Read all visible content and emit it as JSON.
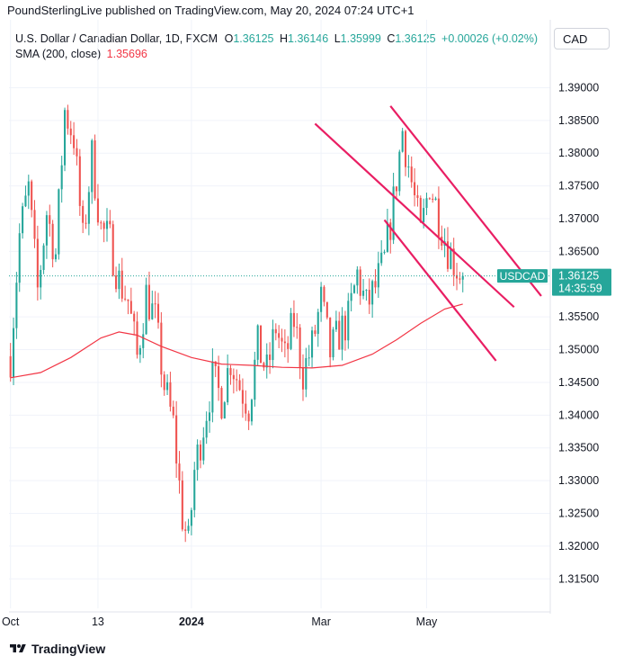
{
  "header": {
    "publisher_line": "PoundSterlingLive published on TradingView.com, May 20, 2024 07:24 UTC+1"
  },
  "legend": {
    "symbol_title": "U.S. Dollar / Canadian Dollar, 1D, FXCM",
    "o_label": "O",
    "o_value": "1.36125",
    "h_label": "H",
    "h_value": "1.36146",
    "l_label": "L",
    "l_value": "1.35999",
    "c_label": "C",
    "c_value": "1.36125",
    "change": "+0.00026 (+0.02%)",
    "sma_label": "SMA (200, close)",
    "sma_value": "1.35696"
  },
  "currency_button": "CAD",
  "footer": {
    "brand": "TradingView"
  },
  "colors": {
    "up": "#26a69a",
    "down": "#ef5350",
    "sma": "#f23645",
    "trendline": "#e91e63",
    "grid": "#f0f3fa"
  },
  "chart_data": {
    "type": "candlestick",
    "y_range": [
      1.3105,
      1.3935
    ],
    "y_ticks": [
      "1.39000",
      "1.38500",
      "1.38000",
      "1.37500",
      "1.37000",
      "1.36500",
      "1.36000",
      "1.35500",
      "1.35000",
      "1.34500",
      "1.34000",
      "1.33500",
      "1.33000",
      "1.32500",
      "1.32000",
      "1.31500"
    ],
    "x_ticks": [
      {
        "label": "Oct",
        "index": 0,
        "bold": false
      },
      {
        "label": "13",
        "index": 29,
        "bold": false
      },
      {
        "label": "2024",
        "index": 60,
        "bold": true
      },
      {
        "label": "Mar",
        "index": 103,
        "bold": false
      },
      {
        "label": "May",
        "index": 138,
        "bold": false
      }
    ],
    "x_domain": [
      -0.5,
      179
    ],
    "price_label": {
      "symbol": "USDCAD",
      "price": "1.36125",
      "countdown": "14:35:59",
      "value": 1.36125
    },
    "close_path": [
      [
        0,
        1.349
      ],
      [
        3,
        1.3675
      ],
      [
        6,
        1.3745
      ],
      [
        9,
        1.359
      ],
      [
        12,
        1.371
      ],
      [
        15,
        1.3645
      ],
      [
        18,
        1.3865
      ],
      [
        21,
        1.3825
      ],
      [
        24,
        1.3665
      ],
      [
        27,
        1.3795
      ],
      [
        30,
        1.3685
      ],
      [
        33,
        1.3665
      ],
      [
        36,
        1.3605
      ],
      [
        39,
        1.3575
      ],
      [
        42,
        1.3488
      ],
      [
        45,
        1.3585
      ],
      [
        48,
        1.3545
      ],
      [
        51,
        1.3445
      ],
      [
        54,
        1.3385
      ],
      [
        57,
        1.3245
      ],
      [
        59,
        1.3202
      ],
      [
        61,
        1.3315
      ],
      [
        64,
        1.3385
      ],
      [
        67,
        1.3455
      ],
      [
        70,
        1.3425
      ],
      [
        73,
        1.3485
      ],
      [
        76,
        1.3445
      ],
      [
        79,
        1.3415
      ],
      [
        82,
        1.3505
      ],
      [
        85,
        1.3465
      ],
      [
        88,
        1.3535
      ],
      [
        91,
        1.3485
      ],
      [
        94,
        1.3545
      ],
      [
        97,
        1.3465
      ],
      [
        100,
        1.3505
      ],
      [
        103,
        1.3575
      ],
      [
        106,
        1.3495
      ],
      [
        109,
        1.3525
      ],
      [
        112,
        1.3545
      ],
      [
        115,
        1.3615
      ],
      [
        118,
        1.3565
      ],
      [
        121,
        1.3595
      ],
      [
        124,
        1.3635
      ],
      [
        127,
        1.3725
      ],
      [
        130,
        1.3835
      ],
      [
        133,
        1.3755
      ],
      [
        136,
        1.3675
      ],
      [
        139,
        1.3755
      ],
      [
        142,
        1.3705
      ],
      [
        145,
        1.3655
      ],
      [
        148,
        1.3625
      ],
      [
        150,
        1.36125
      ]
    ],
    "sma_series": [
      [
        0,
        1.3457
      ],
      [
        10,
        1.3465
      ],
      [
        20,
        1.3488
      ],
      [
        30,
        1.3518
      ],
      [
        36,
        1.3527
      ],
      [
        42,
        1.3522
      ],
      [
        50,
        1.3505
      ],
      [
        60,
        1.3488
      ],
      [
        70,
        1.3478
      ],
      [
        80,
        1.3476
      ],
      [
        90,
        1.3473
      ],
      [
        100,
        1.3472
      ],
      [
        110,
        1.3476
      ],
      [
        120,
        1.3493
      ],
      [
        128,
        1.3515
      ],
      [
        136,
        1.354
      ],
      [
        144,
        1.3562
      ],
      [
        150,
        1.35696
      ]
    ],
    "trendlines": [
      {
        "from": [
          101,
          1.3845
        ],
        "to": [
          167,
          1.3565
        ]
      },
      {
        "from": [
          124,
          1.3698
        ],
        "to": [
          161,
          1.3483
        ]
      },
      {
        "from": [
          126,
          1.3872
        ],
        "to": [
          176,
          1.3582
        ]
      }
    ]
  }
}
